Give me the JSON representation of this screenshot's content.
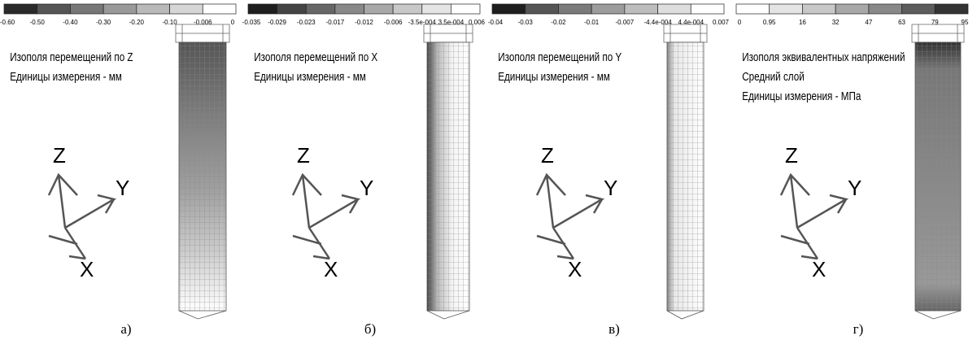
{
  "panels": [
    {
      "legend": {
        "labels": [
          "-0.60",
          "-0.50",
          "-0.40",
          "-0.30",
          "-0.20",
          "-0.10",
          "-0.006",
          "0"
        ],
        "colors": [
          "#2a2a2a",
          "#555555",
          "#777777",
          "#999999",
          "#b9b9b9",
          "#d6d6d6",
          "#ffffff"
        ]
      },
      "title_lines": [
        "Изополя  перемещений по Z",
        "Единицы измерения - мм"
      ],
      "axes": [
        "Z",
        "Y",
        "X"
      ],
      "caption": "а)"
    },
    {
      "legend": {
        "labels": [
          "-0.035",
          "-0.029",
          "-0.023",
          "-0.017",
          "-0.012",
          "-0.006",
          "-3.5e-004",
          "3.5e-004",
          "0.006"
        ],
        "colors": [
          "#1e1e1e",
          "#444444",
          "#666666",
          "#888888",
          "#a8a8a8",
          "#c8c8c8",
          "#e4e4e4",
          "#ffffff"
        ]
      },
      "title_lines": [
        "Изополя перемещений по X",
        "Единицы измерения - мм"
      ],
      "axes": [
        "Z",
        "Y",
        "X"
      ],
      "caption": "б)"
    },
    {
      "legend": {
        "labels": [
          "-0.04",
          "-0.03",
          "-0.02",
          "-0.01",
          "-0.007",
          "-4.4e-004",
          "4.4e-004",
          "0.007"
        ],
        "colors": [
          "#1e1e1e",
          "#555555",
          "#7a7a7a",
          "#9c9c9c",
          "#bdbdbd",
          "#dedede",
          "#ffffff"
        ]
      },
      "title_lines": [
        "Изополя перемещений по Y",
        "Единицы измерения - мм"
      ],
      "axes": [
        "Z",
        "Y",
        "X"
      ],
      "caption": "в)"
    },
    {
      "legend": {
        "labels": [
          "0",
          "0.95",
          "16",
          "32",
          "47",
          "63",
          "79",
          "95"
        ],
        "colors": [
          "#ffffff",
          "#e4e4e4",
          "#c8c8c8",
          "#a8a8a8",
          "#888888",
          "#5c5c5c",
          "#333333"
        ]
      },
      "title_lines": [
        "Изополя эквивалентных напряжений",
        "Средний слой",
        "Единицы измерения - МПа"
      ],
      "axes": [
        "Z",
        "Y",
        "X"
      ],
      "caption": "г)"
    }
  ]
}
